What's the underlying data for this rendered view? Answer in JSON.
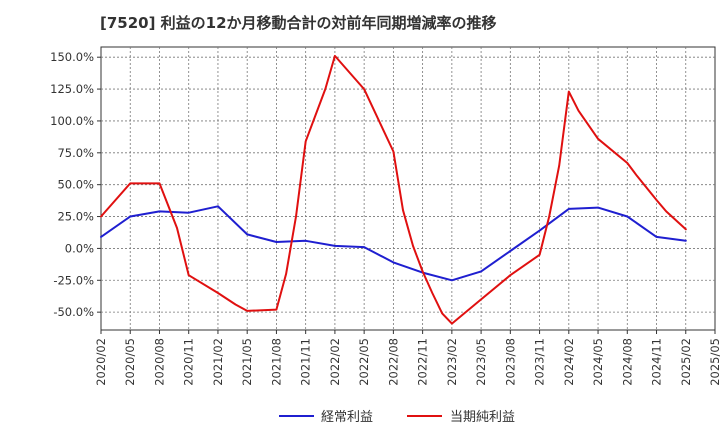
{
  "chart_data": {
    "type": "line",
    "title": "[7520]  利益の12か月移動合計の対前年同期増減率の推移",
    "xlabel": "",
    "ylabel": "",
    "ylim": [
      -0.64,
      1.58
    ],
    "yticks": [
      1.5,
      1.25,
      1.0,
      0.75,
      0.5,
      0.25,
      0.0,
      -0.25,
      -0.5
    ],
    "ytick_labels": [
      "150.0%",
      "125.0%",
      "100.0%",
      "75.0%",
      "50.0%",
      "25.0%",
      "0.0%",
      "-25.0%",
      "-50.0%"
    ],
    "xticks": [
      "2020/02",
      "2020/05",
      "2020/08",
      "2020/11",
      "2021/02",
      "2021/05",
      "2021/08",
      "2021/11",
      "2022/02",
      "2022/05",
      "2022/08",
      "2022/11",
      "2023/02",
      "2023/05",
      "2023/08",
      "2023/11",
      "2024/02",
      "2024/05",
      "2024/08",
      "2024/11",
      "2025/02",
      "2025/05"
    ],
    "grid": true,
    "legend_position": "bottom-center",
    "series": [
      {
        "name": "経常利益",
        "color": "#1f1fd0",
        "points": [
          [
            0,
            0.09
          ],
          [
            1,
            0.25
          ],
          [
            2,
            0.29
          ],
          [
            3,
            0.28
          ],
          [
            4,
            0.33
          ],
          [
            5,
            0.11
          ],
          [
            6,
            0.05
          ],
          [
            7,
            0.06
          ],
          [
            8,
            0.02
          ],
          [
            9,
            0.01
          ],
          [
            10,
            -0.11
          ],
          [
            11,
            -0.19
          ],
          [
            12,
            -0.25
          ],
          [
            13,
            -0.18
          ],
          [
            14,
            -0.02
          ],
          [
            15,
            0.14
          ],
          [
            16,
            0.31
          ],
          [
            17,
            0.32
          ],
          [
            18,
            0.25
          ],
          [
            19,
            0.09
          ],
          [
            20,
            0.06
          ]
        ]
      },
      {
        "name": "当期純利益",
        "color": "#e01010",
        "points": [
          [
            0,
            0.25
          ],
          [
            1,
            0.51
          ],
          [
            2,
            0.51
          ],
          [
            2.6,
            0.16
          ],
          [
            3,
            -0.21
          ],
          [
            4,
            -0.35
          ],
          [
            4.6,
            -0.44
          ],
          [
            5,
            -0.49
          ],
          [
            6,
            -0.48
          ],
          [
            6.33,
            -0.2
          ],
          [
            6.67,
            0.25
          ],
          [
            7,
            0.84
          ],
          [
            7.67,
            1.25
          ],
          [
            8,
            1.51
          ],
          [
            9,
            1.25
          ],
          [
            10,
            0.76
          ],
          [
            10.33,
            0.3
          ],
          [
            10.67,
            0.02
          ],
          [
            11,
            -0.18
          ],
          [
            11.33,
            -0.35
          ],
          [
            11.67,
            -0.51
          ],
          [
            12,
            -0.59
          ],
          [
            13,
            -0.4
          ],
          [
            14,
            -0.21
          ],
          [
            15,
            -0.05
          ],
          [
            15.33,
            0.25
          ],
          [
            15.67,
            0.65
          ],
          [
            16,
            1.23
          ],
          [
            16.33,
            1.08
          ],
          [
            17,
            0.86
          ],
          [
            18,
            0.67
          ],
          [
            18.33,
            0.57
          ],
          [
            19,
            0.38
          ],
          [
            19.33,
            0.29
          ],
          [
            20,
            0.15
          ]
        ]
      }
    ]
  }
}
